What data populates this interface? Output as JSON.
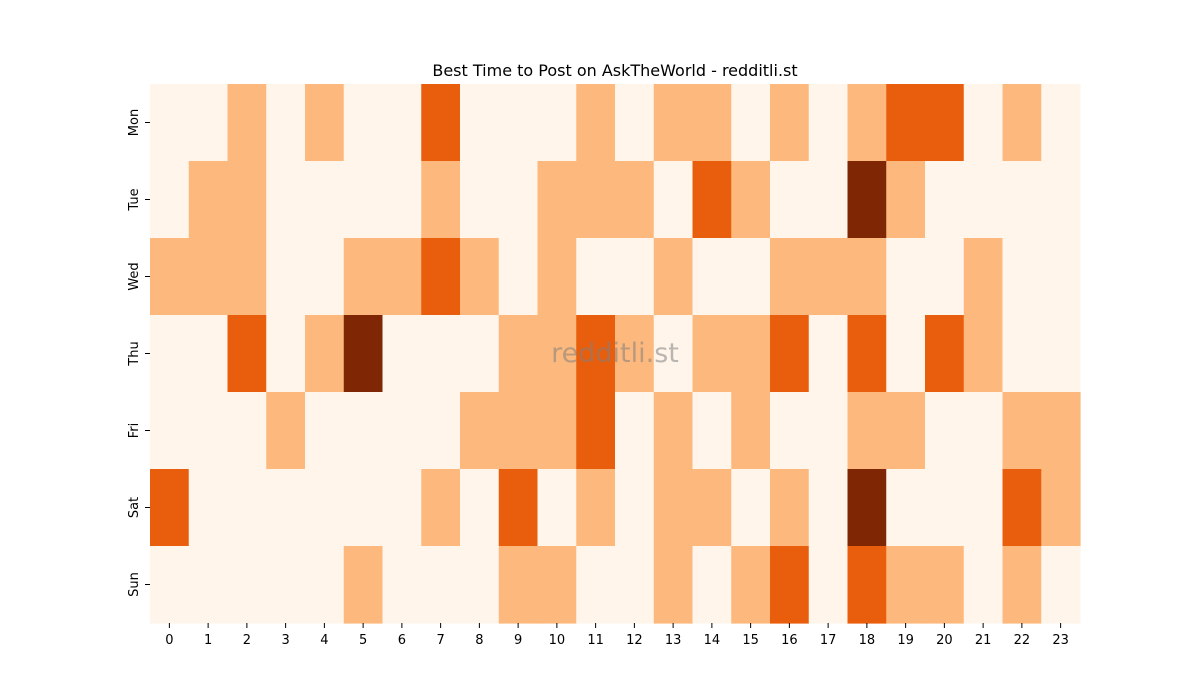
{
  "chart_data": {
    "type": "heatmap",
    "title": "Best Time to Post on AskTheWorld - redditli.st",
    "watermark": "redditli.st",
    "xlabel": "",
    "ylabel": "",
    "x": [
      "0",
      "1",
      "2",
      "3",
      "4",
      "5",
      "6",
      "7",
      "8",
      "9",
      "10",
      "11",
      "12",
      "13",
      "14",
      "15",
      "16",
      "17",
      "18",
      "19",
      "20",
      "21",
      "22",
      "23"
    ],
    "y": [
      "Mon",
      "Tue",
      "Wed",
      "Thu",
      "Fri",
      "Sat",
      "Sun"
    ],
    "values": [
      [
        0,
        0,
        1,
        0,
        1,
        0,
        0,
        2,
        0,
        0,
        0,
        1,
        0,
        1,
        1,
        0,
        1,
        0,
        1,
        2,
        2,
        0,
        1,
        0
      ],
      [
        0,
        1,
        1,
        0,
        0,
        0,
        0,
        1,
        0,
        0,
        1,
        1,
        1,
        0,
        2,
        1,
        0,
        0,
        3,
        1,
        0,
        0,
        0,
        0
      ],
      [
        1,
        1,
        1,
        0,
        0,
        1,
        1,
        2,
        1,
        0,
        1,
        0,
        0,
        1,
        0,
        0,
        1,
        1,
        1,
        0,
        0,
        1,
        0,
        0
      ],
      [
        0,
        0,
        2,
        0,
        1,
        3,
        0,
        0,
        0,
        1,
        1,
        2,
        1,
        0,
        1,
        1,
        2,
        0,
        2,
        0,
        2,
        1,
        0,
        0
      ],
      [
        0,
        0,
        0,
        1,
        0,
        0,
        0,
        0,
        1,
        1,
        1,
        2,
        0,
        1,
        0,
        1,
        0,
        0,
        1,
        1,
        0,
        0,
        1,
        1
      ],
      [
        2,
        0,
        0,
        0,
        0,
        0,
        0,
        1,
        0,
        2,
        0,
        1,
        0,
        1,
        1,
        0,
        1,
        0,
        3,
        0,
        0,
        0,
        2,
        1
      ],
      [
        0,
        0,
        0,
        0,
        0,
        1,
        0,
        0,
        0,
        1,
        1,
        0,
        0,
        1,
        0,
        1,
        2,
        0,
        2,
        1,
        1,
        0,
        1,
        0
      ]
    ],
    "colorbar": false,
    "colors": {
      "0": "#fff5eb",
      "1": "#fdb97d",
      "2": "#e95e0d",
      "3": "#7f2704"
    }
  }
}
